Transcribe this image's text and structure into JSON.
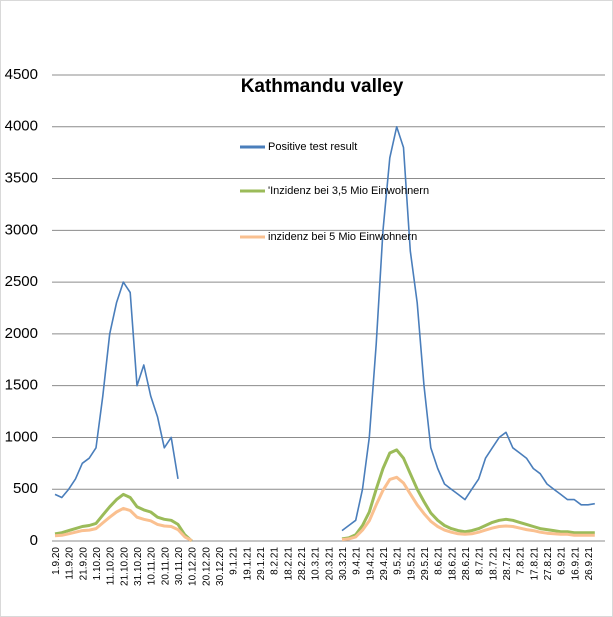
{
  "chart_data": {
    "type": "line",
    "title": "Kathmandu valley",
    "categories": [
      "1.9.20",
      null,
      "11.9.20",
      null,
      "21.9.20",
      null,
      "1.10.20",
      null,
      "11.10.20",
      null,
      "21.10.20",
      null,
      "31.10.20",
      null,
      "10.11.20",
      null,
      "20.11.20",
      null,
      "30.11.20",
      null,
      "10.12.20",
      null,
      "20.12.20",
      null,
      "30.12.20",
      null,
      "9.1.21",
      null,
      "19.1.21",
      null,
      "29.1.21",
      null,
      "8.2.21",
      null,
      "18.2.21",
      null,
      "28.2.21",
      null,
      "10.3.21",
      null,
      "20.3.21",
      null,
      "30.3.21",
      null,
      "9.4.21",
      null,
      "19.4.21",
      null,
      "29.4.21",
      null,
      "9.5.21",
      null,
      "19.5.21",
      null,
      "29.5.21",
      null,
      "8.6.21",
      null,
      "18.6.21",
      null,
      "28.6.21",
      null,
      "8.7.21",
      null,
      "18.7.21",
      null,
      "28.7.21",
      null,
      "7.8.21",
      null,
      "17.8.21",
      null,
      "27.8.21",
      null,
      "6.9.21",
      null,
      "16.9.21",
      null,
      "26.9.21",
      null
    ],
    "series": [
      {
        "name": "Positive test result",
        "color": "#4a7ebb",
        "values": [
          450,
          420,
          500,
          600,
          750,
          800,
          900,
          1400,
          2000,
          2300,
          2500,
          2400,
          1500,
          1700,
          1400,
          1200,
          900,
          1000,
          600,
          null,
          null,
          null,
          null,
          null,
          null,
          null,
          null,
          null,
          null,
          null,
          null,
          null,
          null,
          null,
          null,
          null,
          null,
          null,
          null,
          null,
          null,
          null,
          100,
          150,
          200,
          500,
          1000,
          1900,
          3000,
          3700,
          4000,
          3800,
          2800,
          2300,
          1500,
          900,
          700,
          550,
          500,
          450,
          400,
          500,
          600,
          800,
          900,
          1000,
          1050,
          900,
          850,
          800,
          700,
          650,
          550,
          500,
          450,
          400,
          400,
          350,
          350,
          360
        ]
      },
      {
        "name": "'Inzidenz bei 3,5 Mio Einwohnern",
        "color": "#9bbb59",
        "values": [
          70,
          80,
          100,
          120,
          140,
          150,
          170,
          250,
          330,
          400,
          450,
          420,
          330,
          300,
          280,
          230,
          210,
          200,
          160,
          60,
          0,
          null,
          null,
          null,
          null,
          null,
          null,
          null,
          null,
          null,
          null,
          null,
          null,
          null,
          null,
          null,
          null,
          null,
          null,
          null,
          null,
          null,
          20,
          30,
          60,
          150,
          280,
          500,
          700,
          850,
          880,
          800,
          650,
          500,
          380,
          270,
          200,
          150,
          120,
          100,
          90,
          100,
          120,
          150,
          180,
          200,
          210,
          200,
          180,
          160,
          140,
          120,
          110,
          100,
          90,
          90,
          80,
          80,
          80,
          80
        ]
      },
      {
        "name": "inzidenz bei 5 Mio Einwohnern",
        "color": "#fac090",
        "values": [
          50,
          55,
          70,
          85,
          100,
          105,
          120,
          175,
          230,
          280,
          315,
          295,
          230,
          210,
          195,
          160,
          145,
          140,
          110,
          40,
          5,
          null,
          null,
          null,
          null,
          null,
          null,
          null,
          null,
          null,
          null,
          null,
          null,
          null,
          null,
          null,
          null,
          null,
          null,
          null,
          null,
          null,
          14,
          20,
          40,
          105,
          195,
          350,
          490,
          595,
          615,
          560,
          455,
          350,
          265,
          190,
          140,
          105,
          85,
          70,
          65,
          70,
          85,
          105,
          125,
          140,
          145,
          140,
          125,
          110,
          100,
          85,
          75,
          70,
          65,
          65,
          55,
          55,
          55,
          55
        ]
      }
    ],
    "ylim": [
      0,
      4500
    ],
    "yticks": [
      0,
      500,
      1000,
      1500,
      2000,
      2500,
      3000,
      3500,
      4000,
      4500
    ],
    "grid": true
  }
}
